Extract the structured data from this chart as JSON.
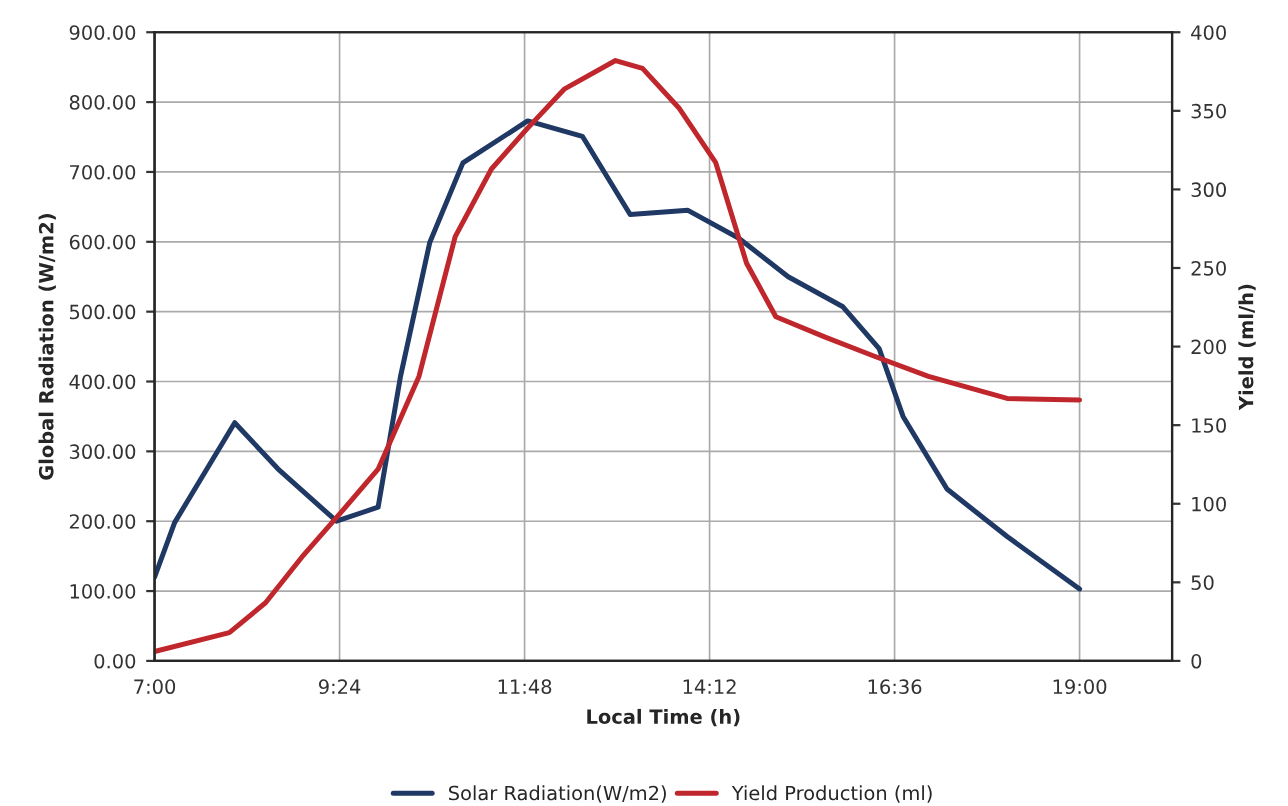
{
  "chart_data": {
    "type": "line",
    "xlabel": "Local Time (h)",
    "ylabel": "Global Radiation (W/m2)",
    "y2label": "Yield (ml/h)",
    "xlim": [
      7,
      20.2
    ],
    "xticks": [
      {
        "value": 7,
        "label": "7:00"
      },
      {
        "value": 9.4,
        "label": "9:24"
      },
      {
        "value": 11.8,
        "label": "11:48"
      },
      {
        "value": 14.2,
        "label": "14:12"
      },
      {
        "value": 16.6,
        "label": "16:36"
      },
      {
        "value": 19,
        "label": "19:00"
      }
    ],
    "ylim": [
      0,
      900
    ],
    "yticks": [
      {
        "value": 0,
        "label": "0.00"
      },
      {
        "value": 100,
        "label": "100.00"
      },
      {
        "value": 200,
        "label": "200.00"
      },
      {
        "value": 300,
        "label": "300.00"
      },
      {
        "value": 400,
        "label": "400.00"
      },
      {
        "value": 500,
        "label": "500.00"
      },
      {
        "value": 600,
        "label": "600.00"
      },
      {
        "value": 700,
        "label": "700.00"
      },
      {
        "value": 800,
        "label": "800.00"
      },
      {
        "value": 900,
        "label": "900.00"
      }
    ],
    "y2lim": [
      0,
      400
    ],
    "y2ticks": [
      0,
      50,
      100,
      150,
      200,
      250,
      300,
      350,
      400
    ],
    "grid": true,
    "legend": "bottom",
    "marker": "none",
    "line_style": "solid",
    "series": [
      {
        "name": "Solar Radiation(W/m2)",
        "color": "#1f3864",
        "x": [
          7.0,
          7.26,
          8.04,
          8.6,
          9.36,
          9.9,
          10.19,
          10.57,
          11.0,
          11.84,
          12.55,
          13.17,
          13.92,
          14.58,
          15.22,
          15.93,
          16.4,
          16.71,
          17.28,
          18.06,
          19.0
        ],
        "values": [
          120,
          198,
          341,
          275,
          200,
          220,
          407,
          599,
          713,
          773,
          751,
          639,
          645,
          605,
          550,
          507,
          447,
          350,
          246,
          178,
          103
        ]
      },
      {
        "name": "Yield Production (ml)",
        "color": "#c0272d",
        "axis": "y2",
        "x": [
          7.0,
          7.97,
          8.44,
          8.91,
          9.41,
          9.9,
          10.43,
          10.9,
          11.37,
          11.84,
          12.32,
          12.98,
          13.33,
          13.8,
          14.28,
          14.68,
          15.06,
          15.7,
          16.33,
          17.04,
          18.06,
          19.0
        ],
        "values": [
          6,
          18,
          37,
          66,
          94,
          122,
          181,
          270,
          313,
          339,
          364,
          382,
          377,
          352,
          317,
          253,
          219,
          206,
          194,
          181,
          167,
          166
        ]
      }
    ]
  }
}
